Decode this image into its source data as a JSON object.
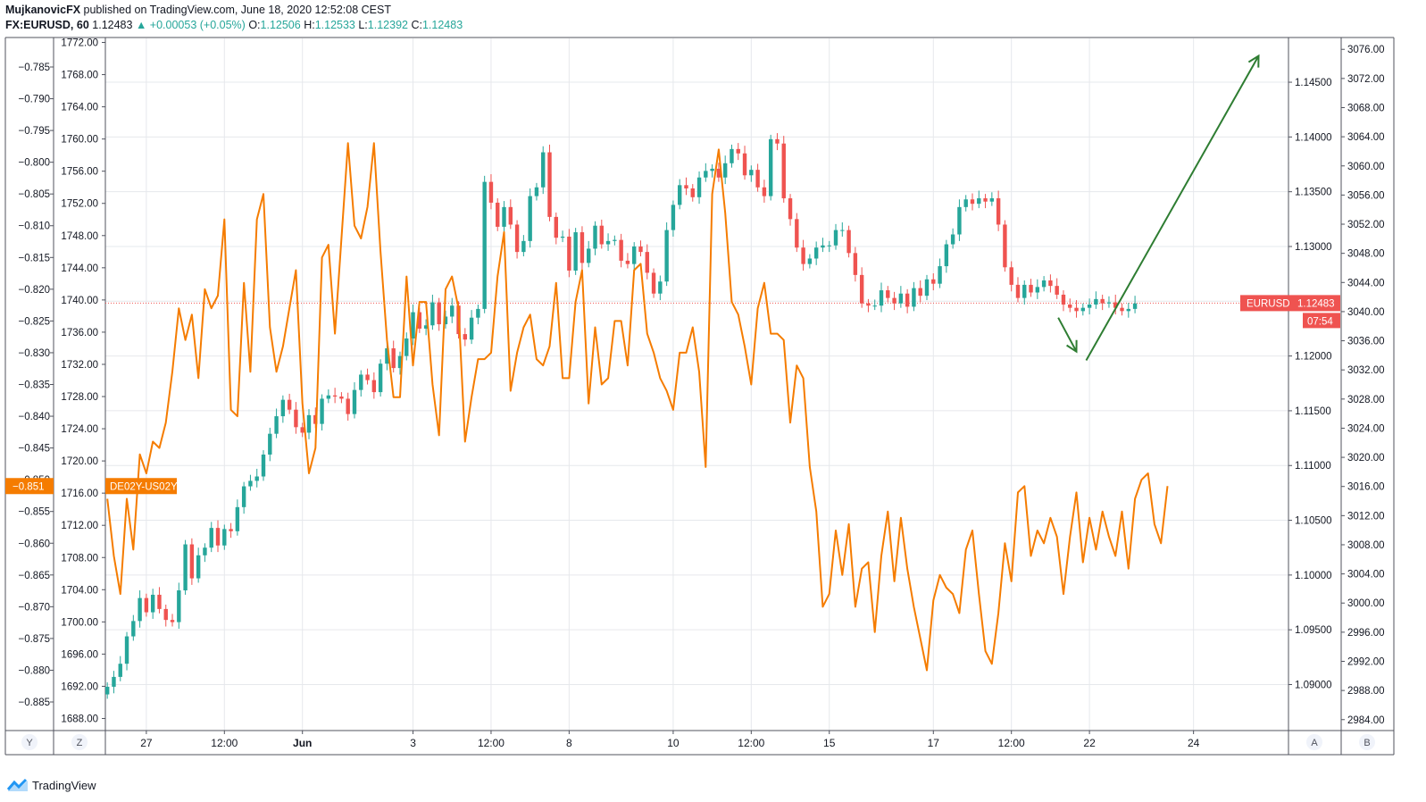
{
  "header": {
    "publisher": "MujkanovicFX",
    "published_text": "published on TradingView.com, June 18, 2020 12:52:08 CEST",
    "symbol": "FX:EURUSD, 60",
    "last": "1.12483",
    "change_arrow": "▲",
    "change": "+0.00053 (+0.05%)",
    "o_label": "O:",
    "o_value": "1.12506",
    "h_label": "H:",
    "h_value": "1.12533",
    "l_label": "L:",
    "l_value": "1.12392",
    "c_label": "C:",
    "c_value": "1.12483"
  },
  "footer": {
    "brand": "TradingView",
    "icon": "tradingview-logo-icon"
  },
  "colors": {
    "up": "#26a69a",
    "down": "#ef5350",
    "spread": "#f57c00",
    "arrow": "#2e7d32",
    "grid": "#e6e8ec",
    "axis": "#50535e"
  },
  "chart_data": {
    "type": "line",
    "title": "",
    "left_axis": {
      "ticks": [
        "-0.785",
        "-0.790",
        "-0.795",
        "-0.800",
        "-0.805",
        "-0.810",
        "-0.815",
        "-0.820",
        "-0.825",
        "-0.830",
        "-0.835",
        "-0.840",
        "-0.845",
        "-0.850",
        "-0.855",
        "-0.860",
        "-0.865",
        "-0.870",
        "-0.875",
        "-0.880",
        "-0.885"
      ],
      "range": [
        -0.8895,
        -0.7805
      ],
      "badge": "-0.851",
      "corner_label": "Y"
    },
    "left_axis_2": {
      "ticks": [
        "1772.00",
        "1768.00",
        "1764.00",
        "1760.00",
        "1756.00",
        "1752.00",
        "1748.00",
        "1744.00",
        "1740.00",
        "1736.00",
        "1732.00",
        "1728.00",
        "1724.00",
        "1720.00",
        "1716.00",
        "1712.00",
        "1708.00",
        "1704.00",
        "1700.00",
        "1696.00",
        "1692.00",
        "1688.00"
      ],
      "range": [
        1686.5,
        1772.5
      ],
      "corner_label": "Z"
    },
    "right_axis": {
      "ticks": [
        "1.14500",
        "1.14000",
        "1.13500",
        "1.13000",
        "1.12500",
        "1.12000",
        "1.11500",
        "1.11000",
        "1.10500",
        "1.10000",
        "1.09500",
        "1.09000"
      ],
      "range": [
        1.0858,
        1.149
      ],
      "price_label": "EURUSD",
      "price_value": "1.12483",
      "countdown": "07:54",
      "corner_label": "A"
    },
    "right_axis_2": {
      "ticks": [
        "3076.00",
        "3072.00",
        "3068.00",
        "3064.00",
        "3060.00",
        "3056.00",
        "3052.00",
        "3048.00",
        "3044.00",
        "3040.00",
        "3036.00",
        "3032.00",
        "3028.00",
        "3024.00",
        "3020.00",
        "3016.00",
        "3012.00",
        "3008.00",
        "3004.00",
        "3000.00",
        "2996.00",
        "2992.00",
        "2988.00",
        "2984.00"
      ],
      "range": [
        2982.5,
        3077.5
      ],
      "corner_label": "B"
    },
    "x_ticks": [
      {
        "label": "27",
        "index": 6
      },
      {
        "label": "12:00",
        "index": 18
      },
      {
        "label": "Jun",
        "index": 30
      },
      {
        "label": "3",
        "index": 47
      },
      {
        "label": "12:00",
        "index": 59
      },
      {
        "label": "8",
        "index": 71
      },
      {
        "label": "10",
        "index": 87
      },
      {
        "label": "12:00",
        "index": 99
      },
      {
        "label": "15",
        "index": 111
      },
      {
        "label": "17",
        "index": 127
      },
      {
        "label": "12:00",
        "index": 139
      },
      {
        "label": "22",
        "index": 151
      },
      {
        "label": "24",
        "index": 167
      }
    ],
    "x_range": [
      -0.3,
      181.6
    ],
    "series": [
      {
        "name": "DE02Y-US02Y",
        "type": "line",
        "axis": "left",
        "values": [
          -0.853,
          -0.862,
          -0.868,
          -0.853,
          -0.861,
          -0.846,
          -0.849,
          -0.844,
          -0.845,
          -0.841,
          -0.833,
          -0.823,
          -0.828,
          -0.824,
          -0.834,
          -0.82,
          -0.823,
          -0.821,
          -0.809,
          -0.839,
          -0.84,
          -0.819,
          -0.833,
          -0.809,
          -0.805,
          -0.826,
          -0.833,
          -0.829,
          -0.823,
          -0.817,
          -0.838,
          -0.849,
          -0.845,
          -0.815,
          -0.813,
          -0.827,
          -0.812,
          -0.797,
          -0.81,
          -0.812,
          -0.807,
          -0.797,
          -0.814,
          -0.828,
          -0.837,
          -0.837,
          -0.818,
          -0.832,
          -0.822,
          -0.822,
          -0.835,
          -0.843,
          -0.82,
          -0.818,
          -0.823,
          -0.844,
          -0.837,
          -0.831,
          -0.831,
          -0.83,
          -0.818,
          -0.811,
          -0.836,
          -0.83,
          -0.826,
          -0.824,
          -0.831,
          -0.832,
          -0.829,
          -0.819,
          -0.834,
          -0.834,
          -0.822,
          -0.817,
          -0.838,
          -0.826,
          -0.835,
          -0.834,
          -0.825,
          -0.825,
          -0.832,
          -0.817,
          -0.816,
          -0.827,
          -0.83,
          -0.834,
          -0.836,
          -0.839,
          -0.83,
          -0.83,
          -0.826,
          -0.833,
          -0.848,
          -0.805,
          -0.798,
          -0.808,
          -0.822,
          -0.824,
          -0.829,
          -0.835,
          -0.823,
          -0.819,
          -0.827,
          -0.827,
          -0.828,
          -0.841,
          -0.832,
          -0.834,
          -0.848,
          -0.855,
          -0.87,
          -0.868,
          -0.858,
          -0.865,
          -0.857,
          -0.87,
          -0.864,
          -0.863,
          -0.874,
          -0.862,
          -0.855,
          -0.866,
          -0.856,
          -0.864,
          -0.87,
          -0.875,
          -0.88,
          -0.869,
          -0.865,
          -0.867,
          -0.868,
          -0.871,
          -0.861,
          -0.858,
          -0.868,
          -0.877,
          -0.879,
          -0.871,
          -0.86,
          -0.866,
          -0.852,
          -0.851,
          -0.862,
          -0.858,
          -0.86,
          -0.856,
          -0.859,
          -0.868,
          -0.859,
          -0.852,
          -0.863,
          -0.856,
          -0.861,
          -0.855,
          -0.859,
          -0.862,
          -0.855,
          -0.864,
          -0.853,
          -0.85,
          -0.849,
          -0.857,
          -0.86,
          -0.851
        ]
      },
      {
        "name": "EURUSD",
        "type": "candlestick",
        "axis": "right",
        "closes": [
          1.0898,
          1.0907,
          1.0919,
          1.0944,
          1.0958,
          1.0979,
          1.0966,
          1.0982,
          1.0969,
          1.0959,
          1.0957,
          1.0986,
          1.1028,
          1.0997,
          1.1018,
          1.1025,
          1.1043,
          1.1027,
          1.1042,
          1.104,
          1.1062,
          1.1081,
          1.1086,
          1.109,
          1.111,
          1.1129,
          1.1145,
          1.116,
          1.1151,
          1.1135,
          1.113,
          1.1146,
          1.1138,
          1.1161,
          1.1164,
          1.1163,
          1.1161,
          1.1147,
          1.1169,
          1.1183,
          1.1178,
          1.1167,
          1.1193,
          1.1207,
          1.1189,
          1.12,
          1.1216,
          1.124,
          1.1225,
          1.1228,
          1.1249,
          1.1229,
          1.1236,
          1.1246,
          1.122,
          1.1215,
          1.1235,
          1.1243,
          1.1359,
          1.134,
          1.1318,
          1.1336,
          1.132,
          1.1295,
          1.1305,
          1.1346,
          1.1354,
          1.1386,
          1.1327,
          1.1308,
          1.1309,
          1.1278,
          1.1313,
          1.1285,
          1.1298,
          1.1319,
          1.1302,
          1.1305,
          1.1306,
          1.1287,
          1.1284,
          1.13,
          1.1295,
          1.1276,
          1.1257,
          1.1268,
          1.1315,
          1.1338,
          1.1356,
          1.1353,
          1.1345,
          1.1363,
          1.1369,
          1.1371,
          1.1363,
          1.1376,
          1.1389,
          1.1385,
          1.1365,
          1.137,
          1.1354,
          1.1346,
          1.1398,
          1.1394,
          1.1344,
          1.1325,
          1.1299,
          1.1284,
          1.1289,
          1.1299,
          1.1301,
          1.1301,
          1.1315,
          1.1315,
          1.1294,
          1.1274,
          1.1248,
          1.1246,
          1.1246,
          1.126,
          1.1253,
          1.1248,
          1.1257,
          1.1245,
          1.1262,
          1.1255,
          1.127,
          1.1266,
          1.1282,
          1.1302,
          1.1311,
          1.1336,
          1.1343,
          1.1339,
          1.1344,
          1.1341,
          1.1344,
          1.132,
          1.1281,
          1.1265,
          1.1253,
          1.1265,
          1.1258,
          1.1263,
          1.1269,
          1.1264,
          1.1256,
          1.1247,
          1.1244,
          1.1241,
          1.1244,
          1.1247,
          1.1252,
          1.1248,
          1.1249,
          1.1244,
          1.1241,
          1.1243,
          1.1248
        ]
      }
    ],
    "annotations": [
      {
        "type": "arrow",
        "from": [
          146.2,
          1.1235
        ],
        "to": [
          149.0,
          1.1204
        ]
      },
      {
        "type": "arrow",
        "from": [
          150.5,
          1.1196
        ],
        "to": [
          177.0,
          1.1474
        ]
      }
    ],
    "current_price_line": 1.12483,
    "grid": true,
    "legend": "none"
  }
}
